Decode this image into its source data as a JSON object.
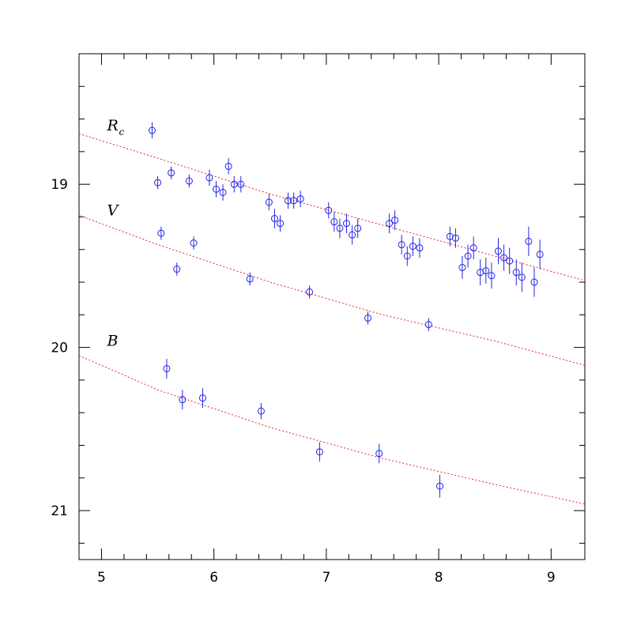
{
  "chart_data": {
    "type": "scatter",
    "title": "",
    "xlabel": "",
    "ylabel": "",
    "xlim": [
      4.8,
      9.3
    ],
    "ylim": [
      21.3,
      18.2
    ],
    "y_inverted": true,
    "grid": false,
    "x_ticks": [
      5,
      6,
      7,
      8,
      9
    ],
    "y_ticks": [
      19,
      20,
      21
    ],
    "colors": {
      "points": "#2424e8",
      "fits": "#e8262a",
      "axes": "#000000"
    },
    "series": [
      {
        "name": "R",
        "name_subscript": "c",
        "label_at": [
          5.05,
          18.67
        ],
        "fit": [
          [
            4.8,
            18.69
          ],
          [
            5.5,
            18.84
          ],
          [
            6.5,
            19.06
          ],
          [
            7.5,
            19.25
          ],
          [
            8.5,
            19.44
          ],
          [
            9.3,
            19.59
          ]
        ],
        "points": [
          [
            5.45,
            18.67,
            0.05
          ],
          [
            5.5,
            18.99,
            0.04
          ],
          [
            5.62,
            18.93,
            0.04
          ],
          [
            5.78,
            18.98,
            0.04
          ],
          [
            5.96,
            18.96,
            0.05
          ],
          [
            6.02,
            19.03,
            0.05
          ],
          [
            6.08,
            19.05,
            0.05
          ],
          [
            6.13,
            18.89,
            0.05
          ],
          [
            6.18,
            19.0,
            0.05
          ],
          [
            6.24,
            19.0,
            0.05
          ],
          [
            6.49,
            19.11,
            0.05
          ],
          [
            6.54,
            19.21,
            0.06
          ],
          [
            6.59,
            19.24,
            0.05
          ],
          [
            6.66,
            19.1,
            0.05
          ],
          [
            6.71,
            19.1,
            0.05
          ],
          [
            6.77,
            19.09,
            0.05
          ],
          [
            7.02,
            19.16,
            0.05
          ],
          [
            7.07,
            19.23,
            0.06
          ],
          [
            7.12,
            19.27,
            0.06
          ],
          [
            7.18,
            19.24,
            0.06
          ],
          [
            7.23,
            19.31,
            0.06
          ],
          [
            7.28,
            19.27,
            0.06
          ],
          [
            7.56,
            19.24,
            0.06
          ],
          [
            7.61,
            19.22,
            0.06
          ],
          [
            7.67,
            19.37,
            0.06
          ],
          [
            7.72,
            19.44,
            0.06
          ],
          [
            7.77,
            19.38,
            0.06
          ],
          [
            7.83,
            19.39,
            0.06
          ],
          [
            8.1,
            19.32,
            0.06
          ],
          [
            8.15,
            19.33,
            0.06
          ],
          [
            8.21,
            19.51,
            0.07
          ],
          [
            8.26,
            19.44,
            0.07
          ],
          [
            8.31,
            19.39,
            0.07
          ],
          [
            8.37,
            19.54,
            0.08
          ],
          [
            8.42,
            19.53,
            0.08
          ],
          [
            8.47,
            19.56,
            0.08
          ],
          [
            8.53,
            19.41,
            0.08
          ],
          [
            8.58,
            19.45,
            0.08
          ],
          [
            8.63,
            19.47,
            0.08
          ],
          [
            8.69,
            19.54,
            0.08
          ],
          [
            8.74,
            19.57,
            0.09
          ],
          [
            8.8,
            19.35,
            0.09
          ],
          [
            8.85,
            19.6,
            0.09
          ],
          [
            8.9,
            19.43,
            0.09
          ]
        ]
      },
      {
        "name": "V",
        "label_at": [
          5.05,
          19.19
        ],
        "fit": [
          [
            4.8,
            19.19
          ],
          [
            5.5,
            19.37
          ],
          [
            6.5,
            19.6
          ],
          [
            7.5,
            19.8
          ],
          [
            8.5,
            19.96
          ],
          [
            9.3,
            20.11
          ]
        ],
        "points": [
          [
            5.53,
            19.3,
            0.04
          ],
          [
            5.67,
            19.52,
            0.04
          ],
          [
            5.82,
            19.36,
            0.04
          ],
          [
            6.32,
            19.58,
            0.04
          ],
          [
            6.85,
            19.66,
            0.04
          ],
          [
            7.37,
            19.82,
            0.04
          ],
          [
            7.91,
            19.86,
            0.04
          ]
        ]
      },
      {
        "name": "B",
        "label_at": [
          5.05,
          19.99
        ],
        "fit": [
          [
            4.8,
            20.05
          ],
          [
            5.5,
            20.26
          ],
          [
            6.5,
            20.49
          ],
          [
            7.5,
            20.68
          ],
          [
            8.5,
            20.84
          ],
          [
            9.3,
            20.96
          ]
        ],
        "points": [
          [
            5.58,
            20.13,
            0.06
          ],
          [
            5.72,
            20.32,
            0.06
          ],
          [
            5.9,
            20.31,
            0.06
          ],
          [
            6.42,
            20.39,
            0.05
          ],
          [
            6.94,
            20.64,
            0.06
          ],
          [
            7.47,
            20.65,
            0.06
          ],
          [
            8.01,
            20.85,
            0.07
          ]
        ]
      }
    ]
  }
}
